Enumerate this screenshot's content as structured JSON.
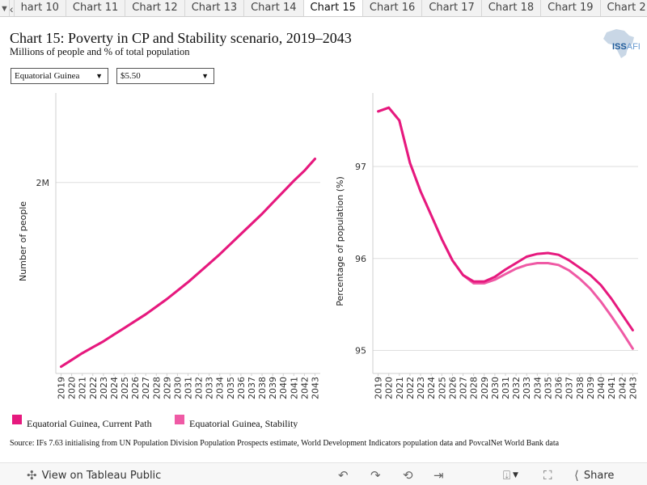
{
  "tabs": {
    "items": [
      "hart 10",
      "Chart 11",
      "Chart 12",
      "Chart 13",
      "Chart 14",
      "Chart 15",
      "Chart 16",
      "Chart 17",
      "Chart 18",
      "Chart 19",
      "Chart 2"
    ],
    "active_index": 5
  },
  "header": {
    "title": "Chart 15: Poverty in CP and Stability scenario, 2019–2043",
    "subtitle": "Millions of people and % of total population"
  },
  "logo": {
    "text_main": "ISS",
    "text_accent": "AFI"
  },
  "filters": {
    "country": "Equatorial Guinea",
    "threshold": "$5.50"
  },
  "colors": {
    "current_path": "#e6197e",
    "stability": "#ef5aa5"
  },
  "chart_data": [
    {
      "type": "line",
      "ylabel": "Number of people",
      "ylim": [
        0.87,
        2.53
      ],
      "y_unit": "millions",
      "yticks": [
        {
          "value": 2.0,
          "label": "2M"
        }
      ],
      "x": [
        2019,
        2020,
        2021,
        2022,
        2023,
        2024,
        2025,
        2026,
        2027,
        2028,
        2029,
        2030,
        2031,
        2032,
        2033,
        2034,
        2035,
        2036,
        2037,
        2038,
        2039,
        2040,
        2041,
        2042,
        2043
      ],
      "series": [
        {
          "name": "Equatorial Guinea, Current Path",
          "values": [
            0.91,
            0.95,
            0.99,
            1.025,
            1.06,
            1.1,
            1.14,
            1.18,
            1.22,
            1.265,
            1.31,
            1.36,
            1.41,
            1.465,
            1.52,
            1.575,
            1.635,
            1.695,
            1.755,
            1.815,
            1.88,
            1.945,
            2.01,
            2.07,
            2.14
          ]
        },
        {
          "name": "Equatorial Guinea, Stability",
          "values": [
            0.91,
            0.95,
            0.99,
            1.025,
            1.06,
            1.1,
            1.14,
            1.18,
            1.22,
            1.265,
            1.31,
            1.36,
            1.41,
            1.465,
            1.52,
            1.575,
            1.635,
            1.695,
            1.755,
            1.815,
            1.88,
            1.945,
            2.01,
            2.07,
            2.14
          ]
        }
      ]
    },
    {
      "type": "line",
      "ylabel": "Percentage of population (%)",
      "ylim": [
        94.75,
        97.8
      ],
      "yticks": [
        {
          "value": 95,
          "label": "95"
        },
        {
          "value": 96,
          "label": "96"
        },
        {
          "value": 97,
          "label": "97"
        }
      ],
      "x": [
        2019,
        2020,
        2021,
        2022,
        2023,
        2024,
        2025,
        2026,
        2027,
        2028,
        2029,
        2030,
        2031,
        2032,
        2033,
        2034,
        2035,
        2036,
        2037,
        2038,
        2039,
        2040,
        2041,
        2042,
        2043
      ],
      "series": [
        {
          "name": "Equatorial Guinea, Current Path",
          "values": [
            97.6,
            97.64,
            97.5,
            97.04,
            96.73,
            96.47,
            96.21,
            95.98,
            95.82,
            95.75,
            95.75,
            95.8,
            95.88,
            95.95,
            96.02,
            96.05,
            96.06,
            96.04,
            95.98,
            95.9,
            95.82,
            95.71,
            95.56,
            95.39,
            95.22
          ]
        },
        {
          "name": "Equatorial Guinea, Stability",
          "values": [
            97.6,
            97.64,
            97.5,
            97.04,
            96.73,
            96.47,
            96.21,
            95.98,
            95.82,
            95.73,
            95.73,
            95.77,
            95.83,
            95.89,
            95.93,
            95.95,
            95.95,
            95.93,
            95.87,
            95.78,
            95.67,
            95.53,
            95.37,
            95.2,
            95.02
          ]
        }
      ]
    }
  ],
  "legend": [
    {
      "label": "Equatorial Guinea, Current Path"
    },
    {
      "label": "Equatorial Guinea, Stability"
    }
  ],
  "source": "Source: IFs 7.63 initialising from UN Population Division Population Prospects estimate, World Development Indicators population data and PovcalNet World Bank data",
  "footer": {
    "view_label": "View on Tableau Public",
    "share_label": "Share"
  }
}
